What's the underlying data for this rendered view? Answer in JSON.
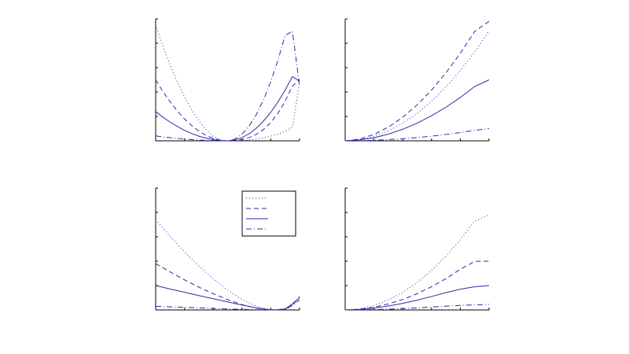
{
  "figure": {
    "background": "#ffffff",
    "axes_color": "#000000",
    "line_color": "#2a2aa8"
  },
  "chart_data": [
    {
      "type": "line",
      "panel": "top-left",
      "grid": false,
      "xlim": [
        0,
        1
      ],
      "ylim": [
        0,
        1
      ],
      "x_ticks": [
        0,
        0.2,
        0.4,
        0.6,
        0.8,
        1.0
      ],
      "y_ticks": [
        0,
        0.2,
        0.4,
        0.6,
        0.8,
        1.0
      ],
      "x": [
        0,
        0.05,
        0.1,
        0.15,
        0.2,
        0.25,
        0.3,
        0.35,
        0.4,
        0.45,
        0.5,
        0.55,
        0.6,
        0.65,
        0.7,
        0.75,
        0.8,
        0.85,
        0.9,
        0.95,
        1.0
      ],
      "series": [
        {
          "style": "dotted",
          "values": [
            0.95,
            0.778,
            0.623,
            0.484,
            0.362,
            0.255,
            0.165,
            0.093,
            0.037,
            0.007,
            0,
            0.001,
            0.003,
            0.008,
            0.015,
            0.025,
            0.038,
            0.056,
            0.079,
            0.11,
            0.48
          ]
        },
        {
          "style": "dashed",
          "values": [
            0.5,
            0.405,
            0.32,
            0.245,
            0.18,
            0.125,
            0.08,
            0.045,
            0.02,
            0.005,
            0,
            0.003,
            0.011,
            0.027,
            0.053,
            0.093,
            0.15,
            0.226,
            0.325,
            0.449,
            0.5
          ]
        },
        {
          "style": "solid",
          "values": [
            0.24,
            0.194,
            0.154,
            0.118,
            0.086,
            0.06,
            0.038,
            0.022,
            0.01,
            0.002,
            0,
            0.007,
            0.026,
            0.058,
            0.104,
            0.163,
            0.234,
            0.319,
            0.417,
            0.527,
            0.49
          ]
        },
        {
          "style": "dashdot",
          "values": [
            0.04,
            0.032,
            0.026,
            0.02,
            0.014,
            0.01,
            0.006,
            0.004,
            0.002,
            0.001,
            0,
            0.014,
            0.054,
            0.122,
            0.216,
            0.338,
            0.486,
            0.662,
            0.864,
            0.9,
            0.45
          ]
        }
      ]
    },
    {
      "type": "line",
      "panel": "top-right",
      "grid": false,
      "xlim": [
        0,
        1
      ],
      "ylim": [
        0,
        1
      ],
      "x_ticks": [
        0,
        0.2,
        0.4,
        0.6,
        0.8,
        1.0
      ],
      "y_ticks": [
        0,
        0.2,
        0.4,
        0.6,
        0.8,
        1.0
      ],
      "x": [
        0,
        0.1,
        0.2,
        0.3,
        0.4,
        0.5,
        0.6,
        0.7,
        0.8,
        0.9,
        1.0
      ],
      "series": [
        {
          "style": "dotted",
          "values": [
            0,
            0.01,
            0.036,
            0.081,
            0.144,
            0.225,
            0.324,
            0.441,
            0.576,
            0.729,
            0.9
          ]
        },
        {
          "style": "dashed",
          "values": [
            0,
            0.014,
            0.052,
            0.112,
            0.193,
            0.294,
            0.416,
            0.557,
            0.717,
            0.897,
            0.98
          ]
        },
        {
          "style": "solid",
          "values": [
            0,
            0.007,
            0.025,
            0.055,
            0.095,
            0.145,
            0.205,
            0.275,
            0.355,
            0.445,
            0.5
          ]
        },
        {
          "style": "dashdot",
          "values": [
            0,
            0.001,
            0.004,
            0.01,
            0.017,
            0.027,
            0.038,
            0.052,
            0.068,
            0.086,
            0.1
          ]
        }
      ]
    },
    {
      "type": "line",
      "panel": "bottom-left",
      "grid": false,
      "xlim": [
        0,
        1
      ],
      "ylim": [
        0,
        1
      ],
      "x_ticks": [
        0,
        0.2,
        0.4,
        0.6,
        0.8,
        1.0
      ],
      "y_ticks": [
        0,
        0.2,
        0.4,
        0.6,
        0.8,
        1.0
      ],
      "legend": {
        "placement": "top-right",
        "entries": [
          "",
          "",
          "",
          ""
        ]
      },
      "x": [
        0,
        0.1,
        0.2,
        0.3,
        0.4,
        0.5,
        0.6,
        0.7,
        0.75,
        0.8,
        0.85,
        0.9,
        0.95,
        1.0
      ],
      "series": [
        {
          "style": "dotted",
          "values": [
            0.74,
            0.604,
            0.477,
            0.361,
            0.256,
            0.163,
            0.086,
            0.03,
            0.012,
            0.003,
            0.001,
            0.002,
            0.03,
            0.1
          ]
        },
        {
          "style": "dashed",
          "values": [
            0.38,
            0.312,
            0.247,
            0.187,
            0.133,
            0.085,
            0.044,
            0.015,
            0.006,
            0.001,
            0.001,
            0.005,
            0.04,
            0.11
          ]
        },
        {
          "style": "solid",
          "values": [
            0.2,
            0.172,
            0.145,
            0.118,
            0.092,
            0.066,
            0.04,
            0.017,
            0.008,
            0.002,
            0.001,
            0.008,
            0.05,
            0.1
          ]
        },
        {
          "style": "dashdot",
          "values": [
            0.03,
            0.026,
            0.021,
            0.017,
            0.012,
            0.008,
            0.005,
            0.002,
            0.001,
            0.001,
            0.002,
            0.012,
            0.04,
            0.08
          ]
        }
      ]
    },
    {
      "type": "line",
      "panel": "bottom-right",
      "grid": false,
      "xlim": [
        0,
        1
      ],
      "ylim": [
        0,
        1
      ],
      "x_ticks": [
        0,
        0.2,
        0.4,
        0.6,
        0.8,
        1.0
      ],
      "y_ticks": [
        0,
        0.2,
        0.4,
        0.6,
        0.8,
        1.0
      ],
      "x": [
        0,
        0.1,
        0.2,
        0.3,
        0.4,
        0.5,
        0.6,
        0.7,
        0.8,
        0.9,
        1.0
      ],
      "series": [
        {
          "style": "dotted",
          "values": [
            0,
            0.009,
            0.036,
            0.081,
            0.144,
            0.225,
            0.324,
            0.441,
            0.576,
            0.729,
            0.78
          ]
        },
        {
          "style": "dashed",
          "values": [
            0,
            0.006,
            0.022,
            0.049,
            0.086,
            0.133,
            0.19,
            0.257,
            0.333,
            0.398,
            0.4
          ]
        },
        {
          "style": "solid",
          "values": [
            0,
            0.004,
            0.015,
            0.032,
            0.054,
            0.08,
            0.11,
            0.142,
            0.17,
            0.19,
            0.2
          ]
        },
        {
          "style": "dashdot",
          "values": [
            0,
            0.001,
            0.003,
            0.006,
            0.011,
            0.017,
            0.024,
            0.031,
            0.037,
            0.042,
            0.045
          ]
        }
      ]
    }
  ]
}
